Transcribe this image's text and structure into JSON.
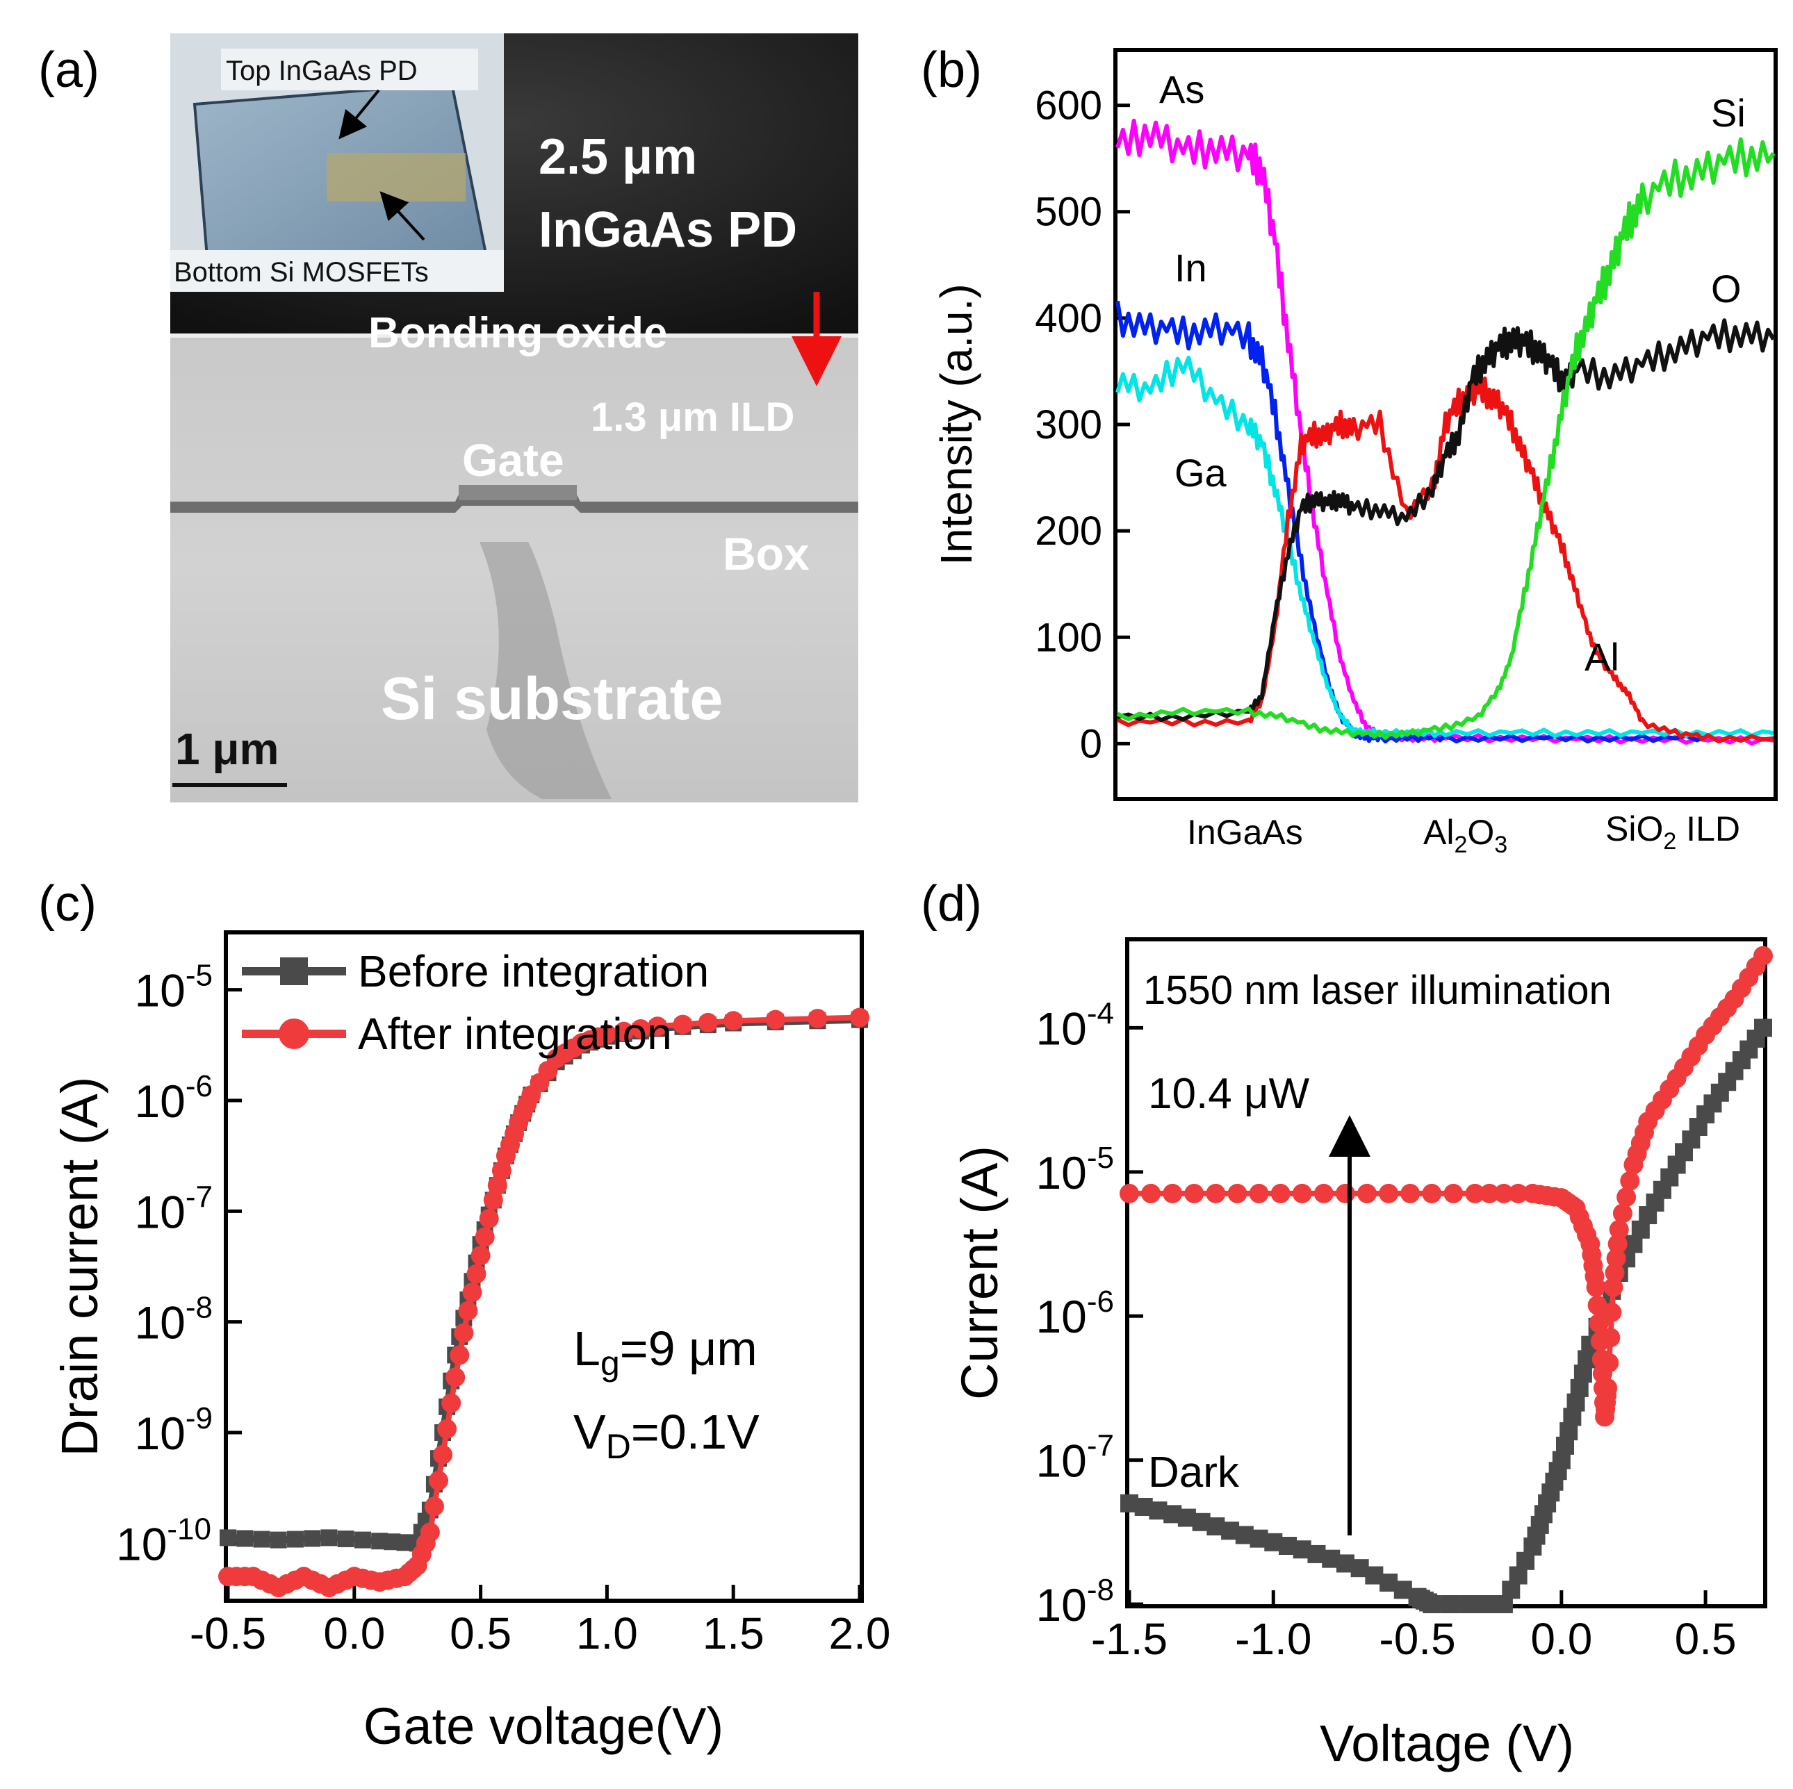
{
  "panel_labels": {
    "a": "(a)",
    "b": "(b)",
    "c": "(c)",
    "d": "(d)"
  },
  "panel_a": {
    "inset_top": "Top InGaAs PD",
    "inset_bottom": "Bottom Si MOSFETs",
    "pd_line1": "2.5 μm",
    "pd_line2": "InGaAs PD",
    "bonding": "Bonding oxide",
    "ild": "1.3 μm ILD",
    "gate": "Gate",
    "box": "Box",
    "substrate": "Si substrate",
    "scale": "1 μm"
  },
  "panel_b_labels": {
    "ingaas": "InGaAs",
    "al": "Al",
    "sub2": "2",
    "o": "O",
    "sub3": "3",
    "sio": "SiO",
    "ild": " ILD"
  },
  "panel_c_text": {
    "lg_main": "L",
    "lg_sub": "g",
    "lg_rest": "=9 μm",
    "vd_main": "V",
    "vd_sub": "D",
    "vd_rest": "=0.1V"
  },
  "panel_d_text": {
    "laser": "1550 nm laser illumination",
    "power": "10.4 μW",
    "dark": "Dark"
  },
  "colors": {
    "As": "#ff00ff",
    "In": "#0022ee",
    "Ga": "#00e5e5",
    "Al": "#ee1111",
    "O": "#111111",
    "Si": "#22dd22",
    "before": "#4a4a4a",
    "after": "#ef3b3b"
  },
  "chart_data": [
    {
      "panel": "b",
      "type": "line",
      "title": "",
      "xlabel": "",
      "ylabel": "Intensity (a.u.)",
      "xlim": [
        0,
        100
      ],
      "ylim": [
        -50,
        650
      ],
      "yticks": [
        0,
        100,
        200,
        300,
        400,
        500,
        600
      ],
      "series": [
        {
          "name": "As",
          "x": [
            0,
            5,
            10,
            15,
            20,
            22,
            24,
            26,
            28,
            30,
            32,
            34,
            36,
            38,
            40,
            45,
            50,
            60,
            70,
            80,
            90,
            100
          ],
          "values": [
            560,
            575,
            555,
            560,
            550,
            540,
            470,
            380,
            290,
            210,
            140,
            80,
            40,
            15,
            8,
            5,
            5,
            5,
            4,
            4,
            3,
            3
          ]
        },
        {
          "name": "In",
          "x": [
            0,
            5,
            10,
            15,
            20,
            22,
            24,
            26,
            28,
            30,
            32,
            34,
            36,
            38,
            40,
            45,
            50,
            60,
            70,
            80,
            90,
            100
          ],
          "values": [
            400,
            390,
            385,
            390,
            380,
            360,
            310,
            240,
            170,
            110,
            60,
            25,
            10,
            5,
            5,
            5,
            5,
            5,
            5,
            5,
            5,
            5
          ]
        },
        {
          "name": "Ga",
          "x": [
            0,
            5,
            10,
            15,
            20,
            22,
            24,
            26,
            28,
            30,
            32,
            34,
            36,
            38,
            40,
            45,
            50,
            60,
            70,
            80,
            90,
            100
          ],
          "values": [
            340,
            330,
            360,
            320,
            300,
            280,
            240,
            190,
            140,
            95,
            55,
            25,
            12,
            10,
            10,
            10,
            10,
            10,
            10,
            10,
            10,
            10
          ]
        },
        {
          "name": "Al",
          "x": [
            0,
            10,
            20,
            22,
            24,
            26,
            28,
            30,
            32,
            34,
            36,
            40,
            44,
            48,
            50,
            52,
            54,
            56,
            58,
            60,
            62,
            64,
            66,
            68,
            70,
            72,
            74,
            76,
            78,
            80,
            85,
            90,
            100
          ],
          "values": [
            20,
            20,
            20,
            40,
            110,
            210,
            280,
            290,
            290,
            300,
            295,
            300,
            215,
            240,
            300,
            320,
            330,
            330,
            320,
            300,
            270,
            240,
            210,
            180,
            140,
            100,
            75,
            60,
            45,
            20,
            10,
            5,
            5
          ]
        },
        {
          "name": "O",
          "x": [
            0,
            10,
            20,
            22,
            24,
            26,
            28,
            30,
            32,
            34,
            36,
            40,
            44,
            48,
            50,
            52,
            54,
            56,
            58,
            60,
            62,
            64,
            66,
            68,
            70,
            75,
            80,
            85,
            90,
            95,
            100
          ],
          "values": [
            25,
            25,
            30,
            45,
            120,
            180,
            220,
            230,
            225,
            230,
            220,
            220,
            210,
            240,
            270,
            290,
            340,
            360,
            370,
            380,
            375,
            370,
            355,
            340,
            350,
            345,
            355,
            370,
            380,
            385,
            380
          ]
        },
        {
          "name": "Si",
          "x": [
            0,
            10,
            20,
            25,
            30,
            35,
            40,
            45,
            50,
            55,
            58,
            60,
            62,
            64,
            66,
            68,
            70,
            72,
            74,
            76,
            78,
            80,
            85,
            90,
            95,
            100
          ],
          "values": [
            25,
            30,
            30,
            25,
            15,
            10,
            8,
            10,
            15,
            25,
            50,
            80,
            140,
            200,
            260,
            320,
            370,
            400,
            430,
            460,
            490,
            510,
            530,
            540,
            550,
            555
          ]
        }
      ],
      "series_labels": [
        "As",
        "In",
        "Ga",
        "Al",
        "O",
        "Si"
      ]
    },
    {
      "panel": "c",
      "type": "scatter",
      "title": "",
      "xlabel": "Gate voltage(V)",
      "ylabel": "Drain current (A)",
      "xlim": [
        -0.5,
        2.0
      ],
      "ylim_log10": [
        -10.5,
        -4.5
      ],
      "xticks": [
        -0.5,
        0.0,
        0.5,
        1.0,
        1.5,
        2.0
      ],
      "xtick_labels": [
        "-0.5",
        "0.0",
        "0.5",
        "1.0",
        "1.5",
        "2.0"
      ],
      "yticks_exp": [
        -10,
        -9,
        -8,
        -7,
        -6,
        -5
      ],
      "series": [
        {
          "name": "Before integration",
          "x": [
            -0.5,
            -0.3,
            -0.1,
            0.1,
            0.25,
            0.3,
            0.35,
            0.4,
            0.45,
            0.5,
            0.55,
            0.6,
            0.65,
            0.7,
            0.8,
            0.9,
            1.0,
            1.2,
            1.5,
            2.0
          ],
          "values_log10": [
            -9.95,
            -9.97,
            -9.95,
            -9.98,
            -10.0,
            -9.7,
            -9.0,
            -8.3,
            -7.8,
            -7.3,
            -6.9,
            -6.5,
            -6.2,
            -5.95,
            -5.65,
            -5.5,
            -5.42,
            -5.35,
            -5.3,
            -5.27
          ]
        },
        {
          "name": "After integration",
          "x": [
            -0.5,
            -0.4,
            -0.3,
            -0.2,
            -0.1,
            0.0,
            0.1,
            0.2,
            0.25,
            0.3,
            0.35,
            0.4,
            0.45,
            0.5,
            0.55,
            0.6,
            0.65,
            0.7,
            0.8,
            0.9,
            1.0,
            1.2,
            1.5,
            2.0
          ],
          "values_log10": [
            -10.3,
            -10.3,
            -10.4,
            -10.3,
            -10.4,
            -10.3,
            -10.35,
            -10.3,
            -10.2,
            -9.9,
            -9.2,
            -8.5,
            -7.9,
            -7.4,
            -6.9,
            -6.5,
            -6.2,
            -5.95,
            -5.62,
            -5.48,
            -5.4,
            -5.33,
            -5.28,
            -5.25
          ]
        }
      ],
      "legend": [
        "Before integration",
        "After integration"
      ]
    },
    {
      "panel": "d",
      "type": "scatter",
      "title": "",
      "xlabel": "Voltage (V)",
      "ylabel": "Current (A)",
      "xlim": [
        -1.5,
        0.7
      ],
      "ylim_log10": [
        -8.0,
        -3.4
      ],
      "xticks": [
        -1.5,
        -1.0,
        -0.5,
        0.0,
        0.5
      ],
      "xtick_labels": [
        "-1.5",
        "-1.0",
        "-0.5",
        "0.0",
        "0.5"
      ],
      "yticks_exp": [
        -8,
        -7,
        -6,
        -5,
        -4
      ],
      "series": [
        {
          "name": "Dark",
          "x": [
            -1.5,
            -1.3,
            -1.1,
            -0.9,
            -0.7,
            -0.5,
            -0.45,
            -0.2,
            -0.1,
            -0.05,
            0.0,
            0.05,
            0.1,
            0.2,
            0.3,
            0.4,
            0.5,
            0.6,
            0.7
          ],
          "values_log10": [
            -7.3,
            -7.4,
            -7.52,
            -7.62,
            -7.75,
            -7.95,
            -8.0,
            -8.0,
            -7.6,
            -7.3,
            -7.0,
            -6.6,
            -6.2,
            -5.7,
            -5.3,
            -4.95,
            -4.6,
            -4.3,
            -4.0
          ]
        },
        {
          "name": "10.4 μW",
          "x": [
            -1.5,
            -1.2,
            -0.9,
            -0.6,
            -0.3,
            -0.1,
            0.0,
            0.05,
            0.1,
            0.12,
            0.14,
            0.15,
            0.16,
            0.18,
            0.2,
            0.25,
            0.3,
            0.4,
            0.5,
            0.6,
            0.7
          ],
          "values_log10": [
            -5.15,
            -5.15,
            -5.15,
            -5.15,
            -5.15,
            -5.15,
            -5.18,
            -5.25,
            -5.5,
            -5.8,
            -6.3,
            -6.7,
            -6.5,
            -5.8,
            -5.4,
            -4.95,
            -4.65,
            -4.35,
            -4.05,
            -3.8,
            -3.5
          ]
        }
      ],
      "annotations": [
        "1550 nm laser illumination",
        "10.4 μW",
        "Dark"
      ]
    }
  ]
}
